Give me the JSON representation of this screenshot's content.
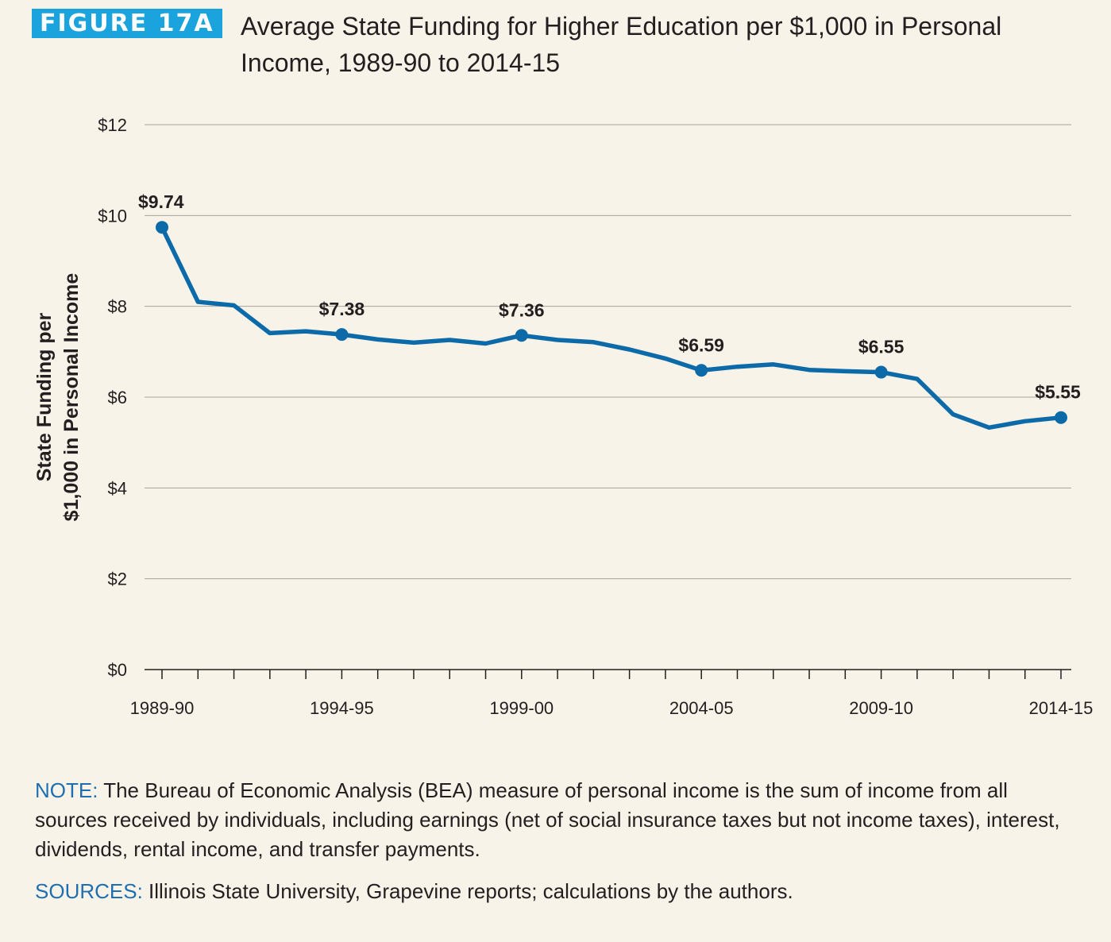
{
  "figure": {
    "badge": "FIGURE 17A",
    "title": "Average State Funding for Higher Education per $1,000 in Personal Income, 1989-90 to 2014-15"
  },
  "colors": {
    "badge": "#1aa3dd",
    "line": "#0d6aa8",
    "background": "#f7f3e8",
    "note_lead": "#1f6fb0"
  },
  "chart_data": {
    "type": "line",
    "title": "Average State Funding for Higher Education per $1,000 in Personal Income, 1989-90 to 2014-15",
    "ylabel_line1": "State Funding per",
    "ylabel_line2": "$1,000 in Personal Income",
    "xlabel": "",
    "ylim": [
      0,
      12
    ],
    "yticks": [
      0,
      2,
      4,
      6,
      8,
      10,
      12
    ],
    "ytick_labels": [
      "$0",
      "$2",
      "$4",
      "$6",
      "$8",
      "$10",
      "$12"
    ],
    "x": [
      "1989-90",
      "1990-91",
      "1991-92",
      "1992-93",
      "1993-94",
      "1994-95",
      "1995-96",
      "1996-97",
      "1997-98",
      "1998-99",
      "1999-00",
      "2000-01",
      "2001-02",
      "2002-03",
      "2003-04",
      "2004-05",
      "2005-06",
      "2006-07",
      "2007-08",
      "2008-09",
      "2009-10",
      "2010-11",
      "2011-12",
      "2012-13",
      "2013-14",
      "2014-15"
    ],
    "xtick_labels": [
      "1989-90",
      "1994-95",
      "1999-00",
      "2004-05",
      "2009-10",
      "2014-15"
    ],
    "series": [
      {
        "values": [
          9.74,
          8.1,
          8.02,
          7.41,
          7.45,
          7.38,
          7.27,
          7.2,
          7.26,
          7.18,
          7.36,
          7.26,
          7.21,
          7.05,
          6.85,
          6.59,
          6.67,
          6.72,
          6.6,
          6.57,
          6.55,
          6.4,
          5.62,
          5.33,
          5.47,
          5.55
        ]
      }
    ],
    "data_labels": [
      {
        "x": "1989-90",
        "value": 9.74,
        "text": "$9.74"
      },
      {
        "x": "1994-95",
        "value": 7.38,
        "text": "$7.38"
      },
      {
        "x": "1999-00",
        "value": 7.36,
        "text": "$7.36"
      },
      {
        "x": "2004-05",
        "value": 6.59,
        "text": "$6.59"
      },
      {
        "x": "2009-10",
        "value": 6.55,
        "text": "$6.55"
      },
      {
        "x": "2014-15",
        "value": 5.55,
        "text": "$5.55"
      }
    ],
    "grid": true,
    "legend": "none"
  },
  "note": {
    "lead": "NOTE:",
    "text": " The Bureau of Economic Analysis (BEA) measure of personal income is the sum of income from all sources received by individuals, including earnings (net of social insurance taxes but not income taxes), interest, dividends, rental income, and transfer payments."
  },
  "sources": {
    "lead": "SOURCES:",
    "text": " Illinois State University, Grapevine reports; calculations by the authors."
  }
}
